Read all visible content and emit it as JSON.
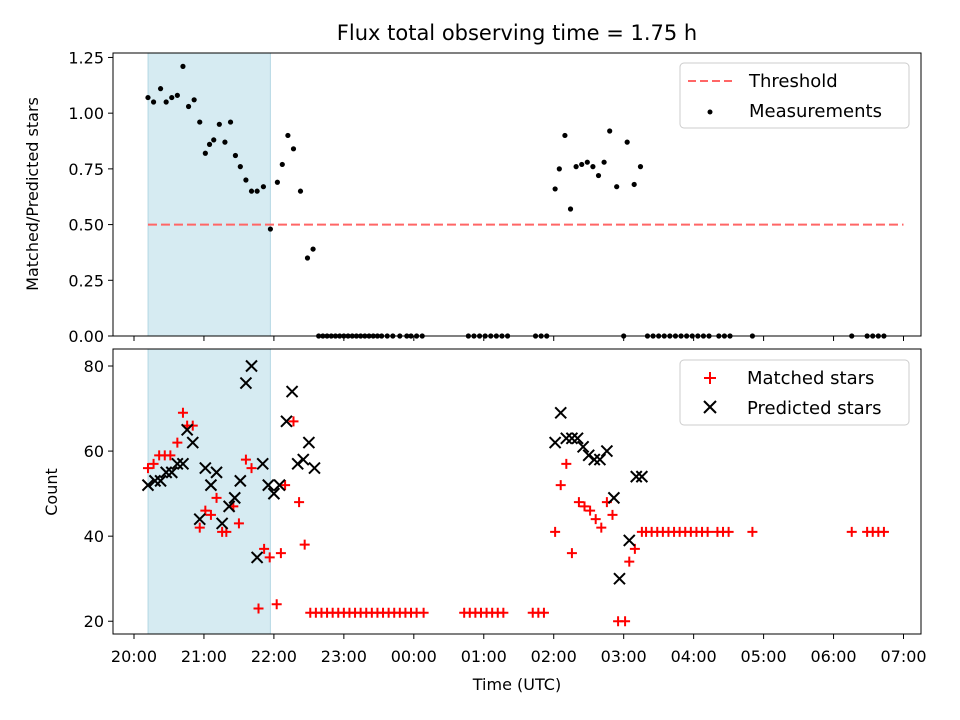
{
  "chart_data": [
    {
      "type": "scatter",
      "title": "Flux total observing time = 1.75 h",
      "xlabel": "",
      "ylabel": "Matched/Predicted stars",
      "x_unit": "hours since 20:00 UTC",
      "xlim": [
        -0.3,
        11.25
      ],
      "ylim": [
        0.0,
        1.27
      ],
      "yticks": [
        "0.00",
        "0.25",
        "0.50",
        "0.75",
        "1.00",
        "1.25"
      ],
      "highlight_span": [
        0.2,
        1.95
      ],
      "highlight_color": "#add8e6",
      "legend_position": "upper right",
      "series": [
        {
          "name": "Threshold",
          "style": "dashed-line",
          "color": "#ff6666",
          "x": [
            0.2,
            11.0
          ],
          "y": [
            0.5,
            0.5
          ]
        },
        {
          "name": "Measurements",
          "style": "dot",
          "color": "#000000",
          "points": [
            [
              0.2,
              1.07
            ],
            [
              0.28,
              1.05
            ],
            [
              0.38,
              1.11
            ],
            [
              0.46,
              1.05
            ],
            [
              0.54,
              1.07
            ],
            [
              0.62,
              1.08
            ],
            [
              0.7,
              1.21
            ],
            [
              0.78,
              1.03
            ],
            [
              0.86,
              1.06
            ],
            [
              0.94,
              0.96
            ],
            [
              1.02,
              0.82
            ],
            [
              1.08,
              0.86
            ],
            [
              1.14,
              0.88
            ],
            [
              1.22,
              0.95
            ],
            [
              1.3,
              0.87
            ],
            [
              1.38,
              0.96
            ],
            [
              1.45,
              0.81
            ],
            [
              1.52,
              0.76
            ],
            [
              1.6,
              0.7
            ],
            [
              1.68,
              0.65
            ],
            [
              1.76,
              0.65
            ],
            [
              1.85,
              0.67
            ],
            [
              1.95,
              0.48
            ],
            [
              2.05,
              0.69
            ],
            [
              2.12,
              0.77
            ],
            [
              2.2,
              0.9
            ],
            [
              2.28,
              0.84
            ],
            [
              2.38,
              0.65
            ],
            [
              2.48,
              0.35
            ],
            [
              2.56,
              0.39
            ],
            [
              2.64,
              0
            ],
            [
              2.7,
              0
            ],
            [
              2.76,
              0
            ],
            [
              2.82,
              0
            ],
            [
              2.88,
              0
            ],
            [
              2.94,
              0
            ],
            [
              3.0,
              0
            ],
            [
              3.06,
              0
            ],
            [
              3.12,
              0
            ],
            [
              3.18,
              0
            ],
            [
              3.24,
              0
            ],
            [
              3.3,
              0
            ],
            [
              3.36,
              0
            ],
            [
              3.42,
              0
            ],
            [
              3.48,
              0
            ],
            [
              3.54,
              0
            ],
            [
              3.62,
              0
            ],
            [
              3.7,
              0
            ],
            [
              3.8,
              0
            ],
            [
              3.9,
              0
            ],
            [
              3.96,
              0
            ],
            [
              4.04,
              0
            ],
            [
              4.12,
              0
            ],
            [
              4.78,
              0
            ],
            [
              4.86,
              0
            ],
            [
              4.94,
              0
            ],
            [
              5.02,
              0
            ],
            [
              5.1,
              0
            ],
            [
              5.18,
              0
            ],
            [
              5.26,
              0
            ],
            [
              5.34,
              0
            ],
            [
              5.74,
              0
            ],
            [
              5.82,
              0
            ],
            [
              5.9,
              0
            ],
            [
              6.02,
              0.66
            ],
            [
              6.08,
              0.75
            ],
            [
              6.16,
              0.9
            ],
            [
              6.24,
              0.57
            ],
            [
              6.32,
              0.76
            ],
            [
              6.4,
              0.77
            ],
            [
              6.48,
              0.78
            ],
            [
              6.56,
              0.76
            ],
            [
              6.64,
              0.72
            ],
            [
              6.72,
              0.78
            ],
            [
              6.8,
              0.92
            ],
            [
              6.9,
              0.67
            ],
            [
              7.05,
              0.87
            ],
            [
              7.15,
              0.68
            ],
            [
              7.24,
              0.76
            ],
            [
              7.0,
              0
            ],
            [
              7.34,
              0
            ],
            [
              7.42,
              0
            ],
            [
              7.5,
              0
            ],
            [
              7.58,
              0
            ],
            [
              7.66,
              0
            ],
            [
              7.74,
              0
            ],
            [
              7.82,
              0
            ],
            [
              7.9,
              0
            ],
            [
              7.98,
              0
            ],
            [
              8.06,
              0
            ],
            [
              8.14,
              0
            ],
            [
              8.22,
              0
            ],
            [
              8.36,
              0
            ],
            [
              8.44,
              0
            ],
            [
              8.52,
              0
            ],
            [
              8.84,
              0
            ],
            [
              10.26,
              0
            ],
            [
              10.48,
              0
            ],
            [
              10.56,
              0
            ],
            [
              10.64,
              0
            ],
            [
              10.72,
              0
            ]
          ]
        }
      ]
    },
    {
      "type": "scatter",
      "title": "",
      "xlabel": "Time (UTC)",
      "ylabel": "Count",
      "x_unit": "hours since 20:00 UTC",
      "xlim": [
        -0.3,
        11.25
      ],
      "ylim": [
        17,
        84
      ],
      "yticks": [
        "20",
        "40",
        "60",
        "80"
      ],
      "xtick_values": [
        0,
        1,
        2,
        3,
        4,
        5,
        6,
        7,
        8,
        9,
        10,
        11
      ],
      "xtick_labels": [
        "20:00",
        "21:00",
        "22:00",
        "23:00",
        "00:00",
        "01:00",
        "02:00",
        "03:00",
        "04:00",
        "05:00",
        "06:00",
        "07:00"
      ],
      "highlight_span": [
        0.2,
        1.95
      ],
      "highlight_color": "#add8e6",
      "legend_position": "upper right",
      "series": [
        {
          "name": "Matched stars",
          "style": "plus",
          "color": "#ff0000",
          "points": [
            [
              0.2,
              56
            ],
            [
              0.28,
              57
            ],
            [
              0.36,
              59
            ],
            [
              0.44,
              59
            ],
            [
              0.52,
              59
            ],
            [
              0.62,
              62
            ],
            [
              0.7,
              69
            ],
            [
              0.76,
              66
            ],
            [
              0.84,
              66
            ],
            [
              0.94,
              42
            ],
            [
              1.02,
              46
            ],
            [
              1.1,
              45
            ],
            [
              1.18,
              49
            ],
            [
              1.26,
              41
            ],
            [
              1.32,
              41
            ],
            [
              1.42,
              47
            ],
            [
              1.5,
              43
            ],
            [
              1.6,
              58
            ],
            [
              1.68,
              56
            ],
            [
              1.78,
              23
            ],
            [
              1.86,
              37
            ],
            [
              1.94,
              35
            ],
            [
              2.04,
              24
            ],
            [
              2.1,
              36
            ],
            [
              2.16,
              52
            ],
            [
              2.28,
              67
            ],
            [
              2.36,
              48
            ],
            [
              2.44,
              38
            ],
            [
              2.52,
              22
            ],
            [
              2.6,
              22
            ],
            [
              2.68,
              22
            ],
            [
              2.76,
              22
            ],
            [
              2.84,
              22
            ],
            [
              2.92,
              22
            ],
            [
              3.0,
              22
            ],
            [
              3.08,
              22
            ],
            [
              3.16,
              22
            ],
            [
              3.24,
              22
            ],
            [
              3.32,
              22
            ],
            [
              3.4,
              22
            ],
            [
              3.48,
              22
            ],
            [
              3.56,
              22
            ],
            [
              3.64,
              22
            ],
            [
              3.72,
              22
            ],
            [
              3.8,
              22
            ],
            [
              3.88,
              22
            ],
            [
              3.96,
              22
            ],
            [
              4.04,
              22
            ],
            [
              4.14,
              22
            ],
            [
              4.72,
              22
            ],
            [
              4.8,
              22
            ],
            [
              4.88,
              22
            ],
            [
              4.96,
              22
            ],
            [
              5.04,
              22
            ],
            [
              5.12,
              22
            ],
            [
              5.2,
              22
            ],
            [
              5.28,
              22
            ],
            [
              5.7,
              22
            ],
            [
              5.78,
              22
            ],
            [
              5.86,
              22
            ],
            [
              6.02,
              41
            ],
            [
              6.1,
              52
            ],
            [
              6.18,
              57
            ],
            [
              6.26,
              36
            ],
            [
              6.36,
              48
            ],
            [
              6.44,
              47
            ],
            [
              6.52,
              46
            ],
            [
              6.6,
              44
            ],
            [
              6.68,
              42
            ],
            [
              6.76,
              48
            ],
            [
              6.84,
              45
            ],
            [
              6.92,
              20
            ],
            [
              7.02,
              20
            ],
            [
              7.08,
              34
            ],
            [
              7.16,
              37
            ],
            [
              7.26,
              41
            ],
            [
              7.32,
              41
            ],
            [
              7.4,
              41
            ],
            [
              7.48,
              41
            ],
            [
              7.56,
              41
            ],
            [
              7.64,
              41
            ],
            [
              7.72,
              41
            ],
            [
              7.8,
              41
            ],
            [
              7.88,
              41
            ],
            [
              7.96,
              41
            ],
            [
              8.04,
              41
            ],
            [
              8.12,
              41
            ],
            [
              8.2,
              41
            ],
            [
              8.34,
              41
            ],
            [
              8.42,
              41
            ],
            [
              8.5,
              41
            ],
            [
              8.84,
              41
            ],
            [
              10.26,
              41
            ],
            [
              10.48,
              41
            ],
            [
              10.56,
              41
            ],
            [
              10.64,
              41
            ],
            [
              10.72,
              41
            ]
          ]
        },
        {
          "name": "Predicted stars",
          "style": "cross",
          "color": "#000000",
          "points": [
            [
              0.2,
              52
            ],
            [
              0.3,
              53
            ],
            [
              0.38,
              53
            ],
            [
              0.46,
              55
            ],
            [
              0.54,
              55
            ],
            [
              0.62,
              57
            ],
            [
              0.7,
              57
            ],
            [
              0.76,
              65
            ],
            [
              0.84,
              62
            ],
            [
              0.94,
              44
            ],
            [
              1.02,
              56
            ],
            [
              1.1,
              52
            ],
            [
              1.18,
              55
            ],
            [
              1.26,
              43
            ],
            [
              1.36,
              47
            ],
            [
              1.44,
              49
            ],
            [
              1.52,
              53
            ],
            [
              1.6,
              76
            ],
            [
              1.68,
              80
            ],
            [
              1.76,
              35
            ],
            [
              1.84,
              57
            ],
            [
              1.92,
              52
            ],
            [
              2.0,
              50
            ],
            [
              2.08,
              52
            ],
            [
              2.18,
              67
            ],
            [
              2.26,
              74
            ],
            [
              2.34,
              57
            ],
            [
              2.42,
              58
            ],
            [
              2.5,
              62
            ],
            [
              2.58,
              56
            ],
            [
              6.02,
              62
            ],
            [
              6.1,
              69
            ],
            [
              6.18,
              63
            ],
            [
              6.26,
              63
            ],
            [
              6.34,
              63
            ],
            [
              6.42,
              61
            ],
            [
              6.5,
              59
            ],
            [
              6.58,
              58
            ],
            [
              6.66,
              58
            ],
            [
              6.76,
              60
            ],
            [
              6.86,
              49
            ],
            [
              6.94,
              30
            ],
            [
              7.08,
              39
            ],
            [
              7.18,
              54
            ],
            [
              7.26,
              54
            ]
          ]
        }
      ]
    }
  ]
}
